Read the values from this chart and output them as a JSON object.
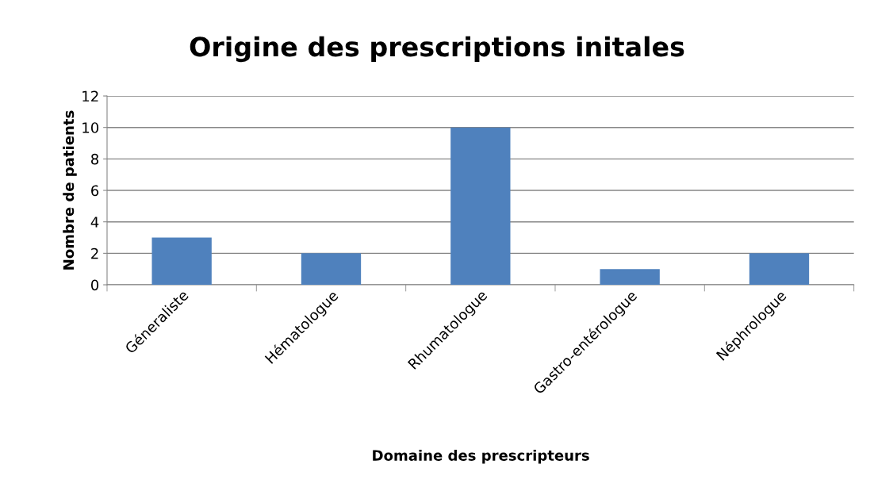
{
  "chart_data": {
    "type": "bar",
    "title": "Origine des prescriptions initales",
    "xlabel": "Domaine des prescripteurs",
    "ylabel": "Nombre de patients",
    "categories": [
      "Géneraliste",
      "Hématologue",
      "Rhumatologue",
      "Gastro-entérologue",
      "Néphrologue"
    ],
    "values": [
      3,
      2,
      10,
      1,
      2
    ],
    "color": "#4f81bd",
    "ylim": [
      0,
      12
    ],
    "yticks": [
      0,
      2,
      4,
      6,
      8,
      10,
      12
    ],
    "grid": "y"
  }
}
